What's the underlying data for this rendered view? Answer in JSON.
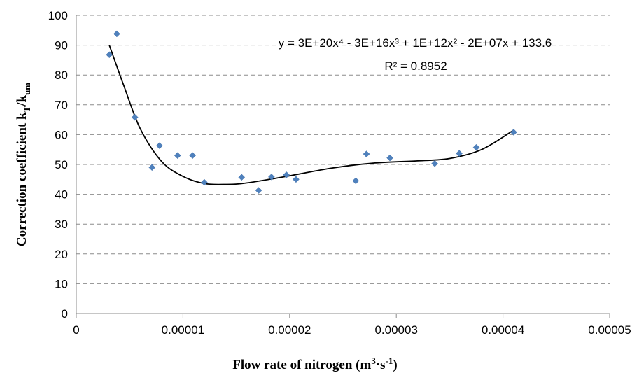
{
  "chart_data": {
    "type": "scatter",
    "title": "",
    "xlabel": "Flow rate of nitrogen (m³·s⁻¹)",
    "ylabel": "Correction coefficient kT/kum",
    "xlim": [
      0,
      5e-05
    ],
    "ylim": [
      0,
      100
    ],
    "x_ticks": [
      "0",
      "0.00001",
      "0.00002",
      "0.00003",
      "0.00004",
      "0.00005"
    ],
    "y_ticks": [
      "0",
      "10",
      "20",
      "30",
      "40",
      "50",
      "60",
      "70",
      "80",
      "90",
      "100"
    ],
    "grid": true,
    "series": [
      {
        "points": [
          [
            3.1e-06,
            86.8
          ],
          [
            3.8e-06,
            93.8
          ],
          [
            5.5e-06,
            65.8
          ],
          [
            7.1e-06,
            49.0
          ],
          [
            7.8e-06,
            56.3
          ],
          [
            9.5e-06,
            53.0
          ],
          [
            1.09e-05,
            53.0
          ],
          [
            1.2e-05,
            44.0
          ],
          [
            1.55e-05,
            45.7
          ],
          [
            1.71e-05,
            41.3
          ],
          [
            1.83e-05,
            45.8
          ],
          [
            1.97e-05,
            46.5
          ],
          [
            2.06e-05,
            45.0
          ],
          [
            2.62e-05,
            44.5
          ],
          [
            2.72e-05,
            53.5
          ],
          [
            2.94e-05,
            52.2
          ],
          [
            3.36e-05,
            50.3
          ],
          [
            3.59e-05,
            53.7
          ],
          [
            3.75e-05,
            55.7
          ],
          [
            4.1e-05,
            60.8
          ]
        ],
        "color": "#4f81bd",
        "marker": "diamond"
      }
    ],
    "trendline": {
      "type": "polynomial",
      "order": 4,
      "equation": "y = 3E+20x⁴ - 3E+16x³ + 1E+12x² - 2E+07x + 133.6",
      "r_squared": "R² = 0.8952",
      "curve": [
        [
          3.1e-06,
          90
        ],
        [
          4.5e-06,
          76
        ],
        [
          6e-06,
          62
        ],
        [
          8e-06,
          51
        ],
        [
          1e-05,
          46
        ],
        [
          1.2e-05,
          43.6
        ],
        [
          1.4e-05,
          43.3
        ],
        [
          1.6e-05,
          43.8
        ],
        [
          2e-05,
          46.2
        ],
        [
          2.4e-05,
          48.8
        ],
        [
          2.8e-05,
          50.5
        ],
        [
          3.2e-05,
          51.2
        ],
        [
          3.5e-05,
          52.0
        ],
        [
          3.8e-05,
          55.0
        ],
        [
          4.1e-05,
          61.5
        ]
      ]
    }
  }
}
